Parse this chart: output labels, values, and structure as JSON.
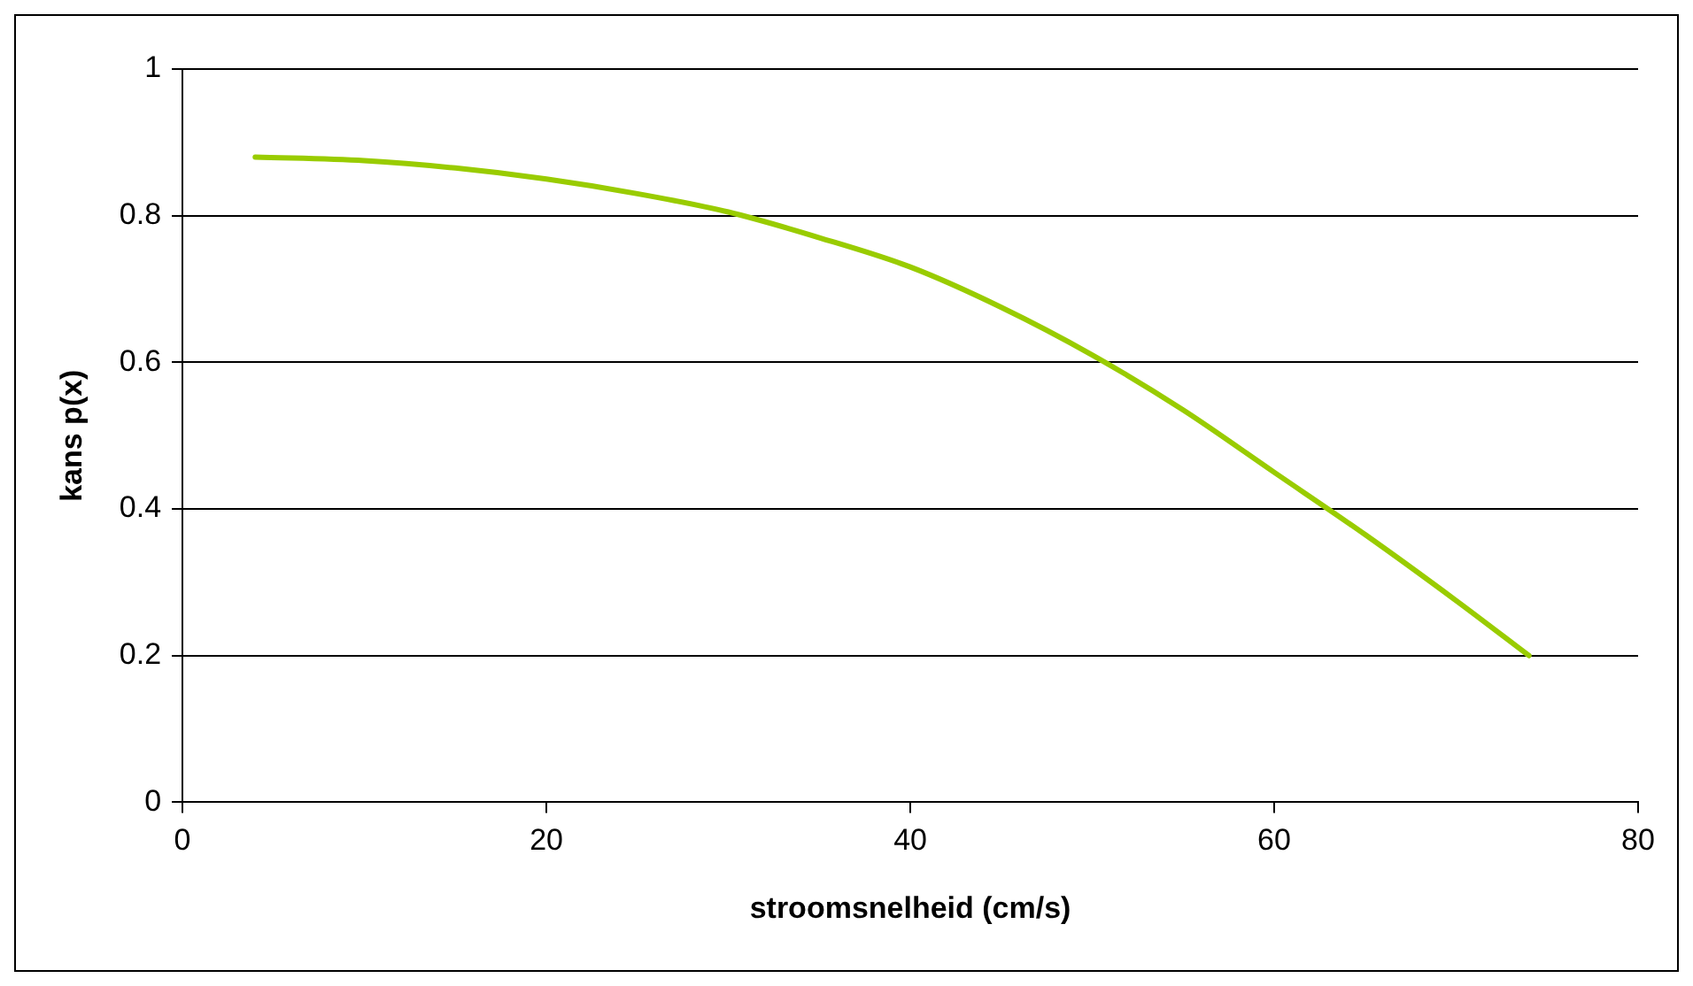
{
  "chart_data": {
    "type": "line",
    "xlabel": "stroomsnelheid (cm/s)",
    "ylabel": "kans p(x)",
    "series": [
      {
        "color": "#99cc00",
        "x": [
          4,
          10,
          15,
          20,
          25,
          30,
          35,
          40,
          45,
          50,
          55,
          60,
          65,
          70,
          74
        ],
        "values": [
          0.88,
          0.875,
          0.865,
          0.85,
          0.83,
          0.805,
          0.77,
          0.73,
          0.675,
          0.61,
          0.535,
          0.45,
          0.365,
          0.275,
          0.2
        ]
      }
    ],
    "xlim": [
      0,
      80
    ],
    "xticks": [
      0,
      20,
      40,
      60,
      80
    ],
    "ylim": [
      0,
      1
    ],
    "yticks": [
      0,
      0.2,
      0.4,
      0.6,
      0.8,
      1
    ],
    "grid": "y",
    "legend": false,
    "marker": "none",
    "line_style": "solid"
  }
}
